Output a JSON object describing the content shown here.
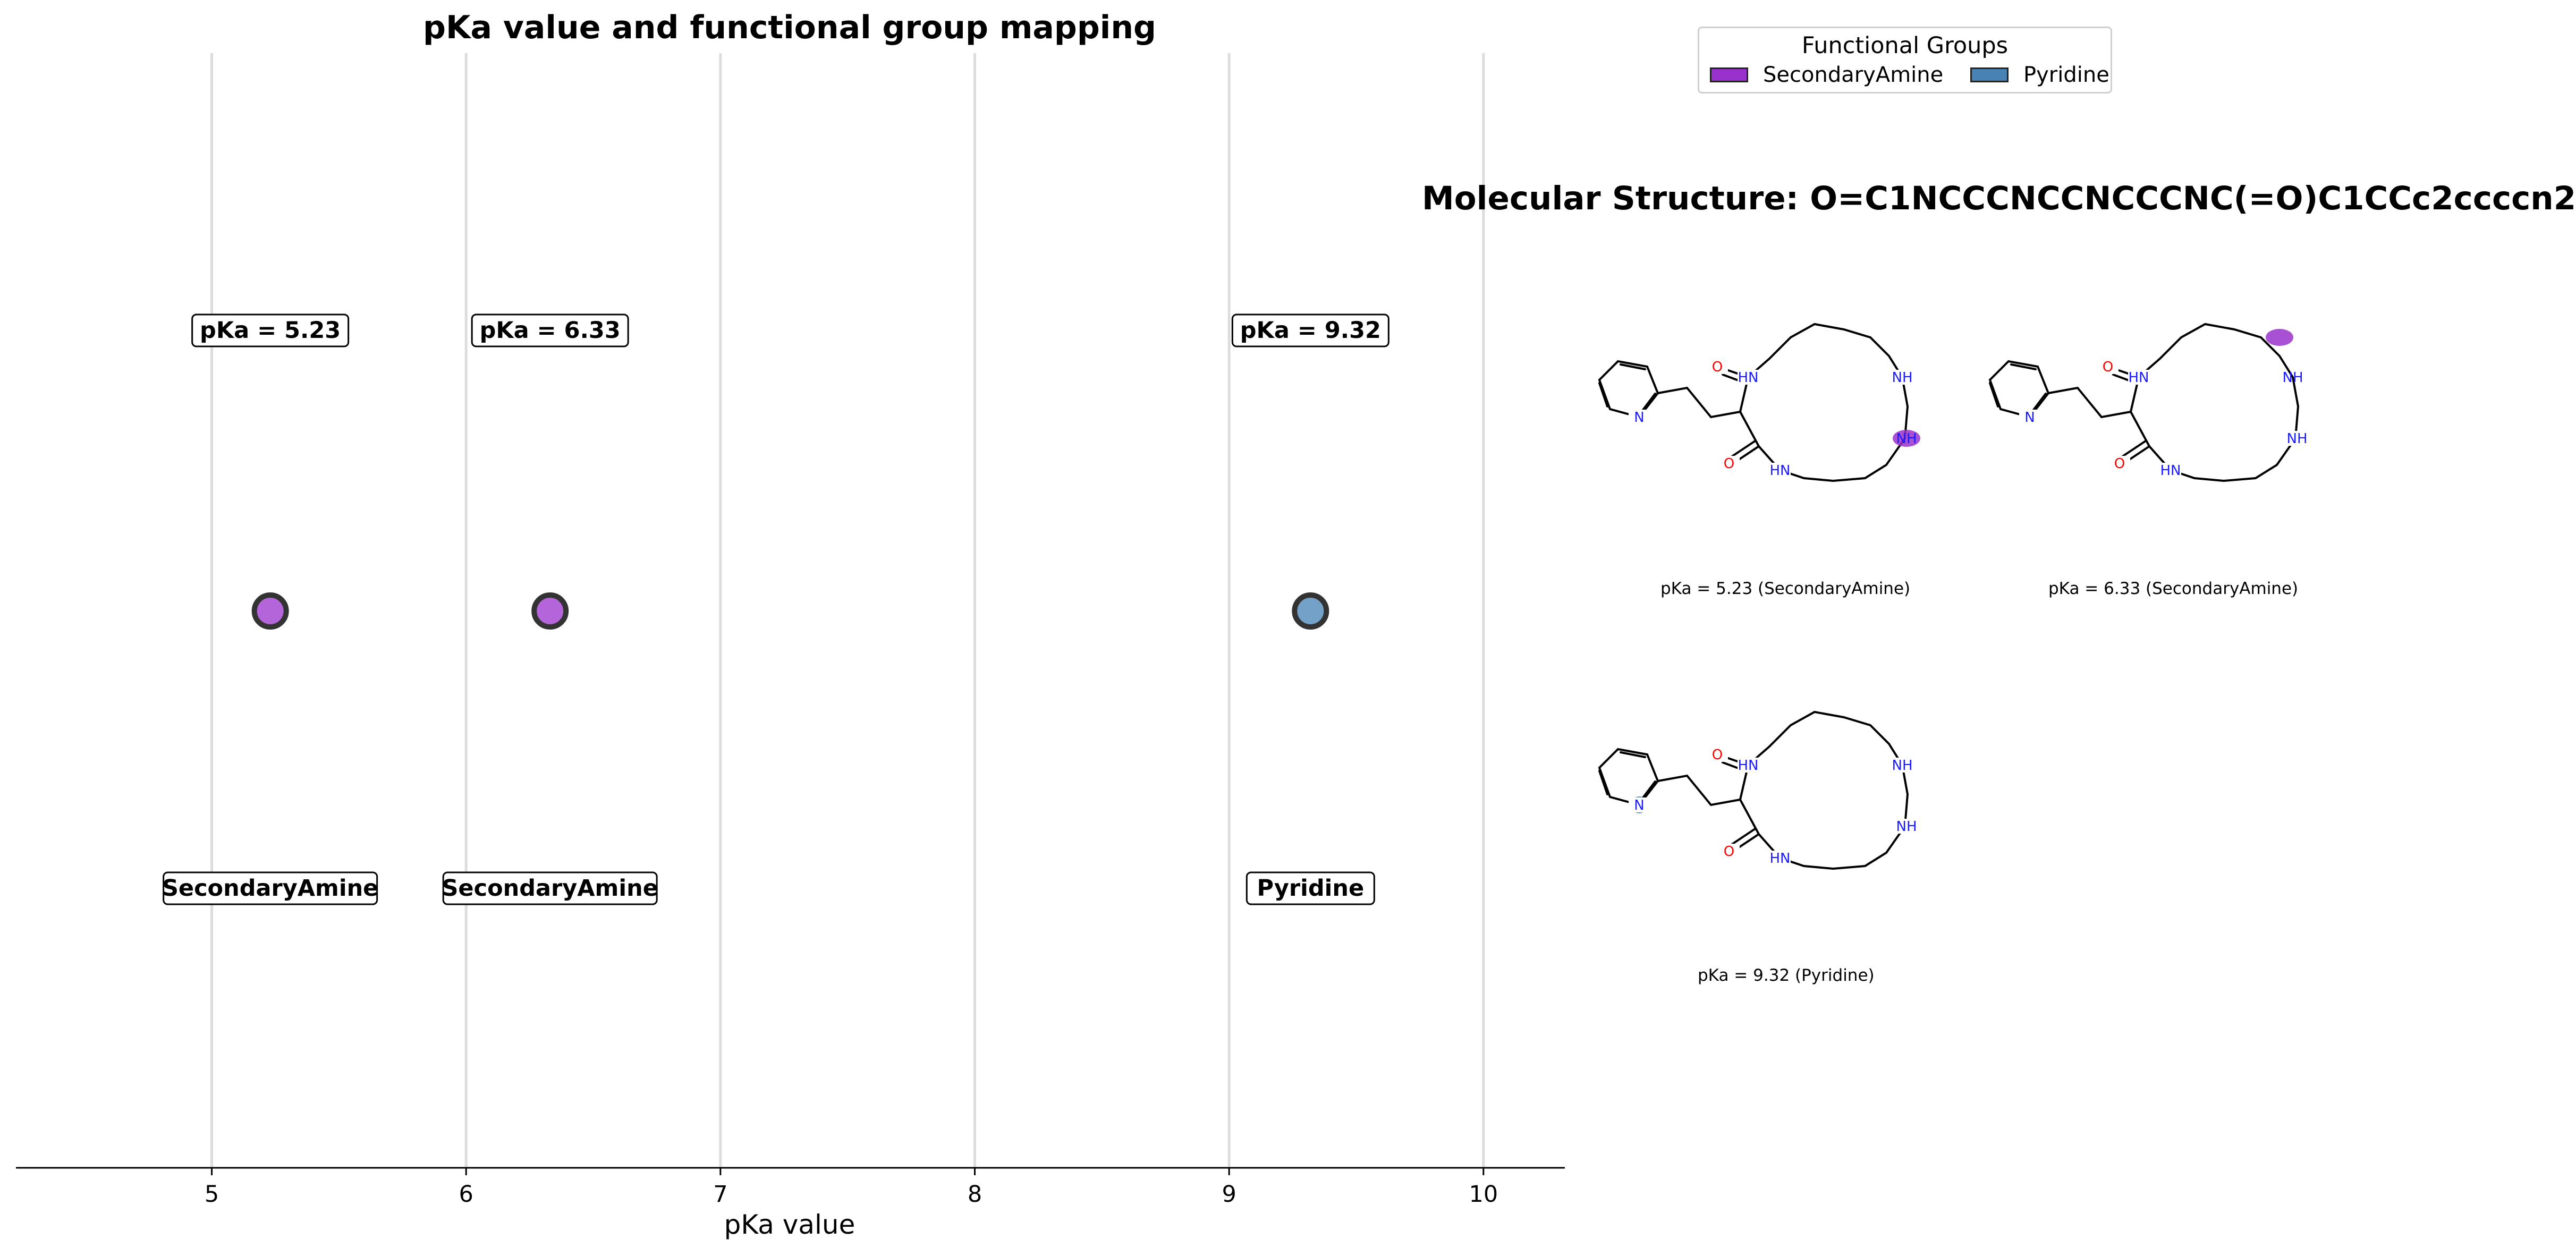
{
  "chart_data": {
    "type": "scatter",
    "title": "pKa value and functional group mapping",
    "xlabel": "pKa value",
    "ylabel": "",
    "xlim": [
      4.23,
      10.32
    ],
    "xticks": [
      5,
      6,
      7,
      8,
      9,
      10
    ],
    "grid": "vertical",
    "points": [
      {
        "x": 5.23,
        "label": "pKa = 5.23",
        "group": "SecondaryAmine",
        "color": "#9932CC"
      },
      {
        "x": 6.33,
        "label": "pKa = 6.33",
        "group": "SecondaryAmine",
        "color": "#9932CC"
      },
      {
        "x": 9.32,
        "label": "pKa = 9.32",
        "group": "Pyridine",
        "color": "#4682B4"
      }
    ]
  },
  "legend": {
    "title": "Functional Groups",
    "placement": "top-center",
    "items": [
      {
        "name": "SecondaryAmine",
        "color": "#9932CC"
      },
      {
        "name": "Pyridine",
        "color": "#4682B4"
      }
    ]
  },
  "molecule": {
    "title": "Molecular Structure: O=C1NCCCNCCNCCCNC(=O)C1CCc2ccccn2",
    "captions": [
      "pKa = 5.23 (SecondaryAmine)",
      "pKa = 6.33 (SecondaryAmine)",
      "pKa = 9.32 (Pyridine)"
    ],
    "atom_labels": {
      "nh": "NH",
      "hn": "HN",
      "n": "N",
      "o": "O"
    }
  }
}
